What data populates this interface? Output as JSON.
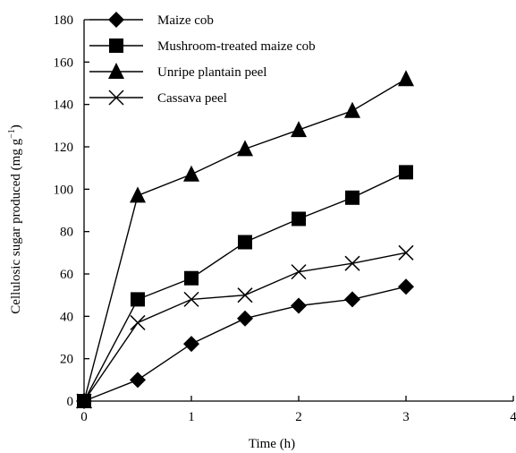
{
  "chart_data": {
    "type": "line",
    "xlabel": "Time (h)",
    "ylabel": "Cellulosic sugar produced (mg g",
    "ylabel_sup": "−1",
    "ylabel_close": ")",
    "xlim": [
      0,
      4
    ],
    "ylim": [
      0,
      180
    ],
    "xticks": [
      0,
      1,
      2,
      3,
      4
    ],
    "yticks": [
      0,
      20,
      40,
      60,
      80,
      100,
      120,
      140,
      160,
      180
    ],
    "grid": false,
    "legend_position": "top-left",
    "series": [
      {
        "name": "Maize cob",
        "marker": "diamond",
        "x": [
          0,
          0.5,
          1,
          1.5,
          2,
          2.5,
          3
        ],
        "y": [
          0,
          10,
          27,
          39,
          45,
          48,
          54
        ]
      },
      {
        "name": "Mushroom-treated maize cob",
        "marker": "square",
        "x": [
          0,
          0.5,
          1,
          1.5,
          2,
          2.5,
          3
        ],
        "y": [
          0,
          48,
          58,
          75,
          86,
          96,
          108
        ]
      },
      {
        "name": "Unripe plantain peel",
        "marker": "triangle",
        "x": [
          0,
          0.5,
          1,
          1.5,
          2,
          2.5,
          3
        ],
        "y": [
          0,
          97,
          107,
          119,
          128,
          137,
          152
        ]
      },
      {
        "name": "Cassava peel",
        "marker": "cross",
        "x": [
          0,
          0.5,
          1,
          1.5,
          2,
          2.5,
          3
        ],
        "y": [
          0,
          37,
          48,
          50,
          61,
          65,
          70
        ]
      }
    ]
  }
}
